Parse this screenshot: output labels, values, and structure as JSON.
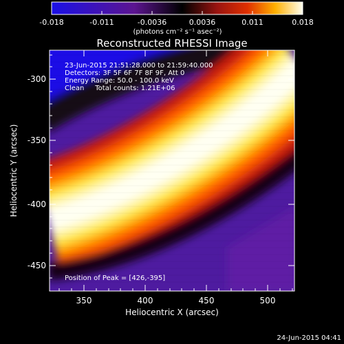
{
  "colorbar": {
    "ticks": [
      "-0.018",
      "-0.011",
      "-0.0036",
      "0.0036",
      "0.011",
      "0.018"
    ],
    "unit_label": "(photons cm⁻² s⁻¹ asec⁻²)"
  },
  "title": "Reconstructed RHESSI Image",
  "info": {
    "time_range": "23-Jun-2015 21:51:28.000 to 21:59:40.000",
    "detectors": "Detectors: 3F 5F 6F 7F 8F 9F, Att 0",
    "energy": "Energy Range: 50.0 - 100.0 keV",
    "clean": "Clean     Total counts: 1.21E+06",
    "peak": "Position of Peak = [426,-395]"
  },
  "axes": {
    "xlabel": "Heliocentric X (arcsec)",
    "ylabel": "Heliocentric Y (arcsec)",
    "xticks": [
      "350",
      "400",
      "450",
      "500"
    ],
    "yticks": [
      "-300",
      "-350",
      "-400",
      "-450"
    ]
  },
  "timestamp": "24-Jun-2015 04:41",
  "colors": {
    "cmap_low": "#1a10e6",
    "cmap_mid": "#5c1590",
    "cmap_hot": "#d52a05",
    "cmap_high": "#fffdf0"
  }
}
